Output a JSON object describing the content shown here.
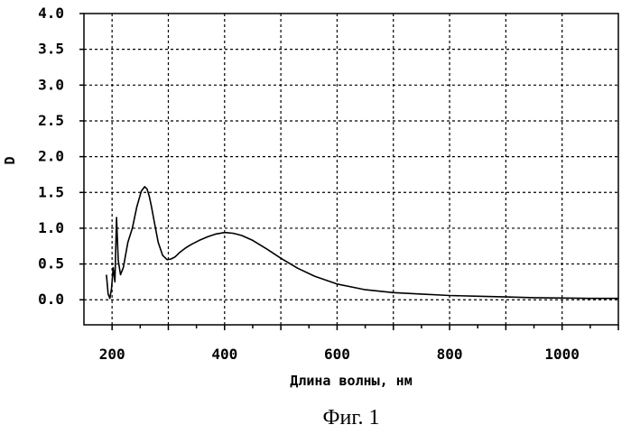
{
  "chart_data": {
    "type": "line",
    "xlabel": "Длина волны, нм",
    "ylabel": "D",
    "caption": "Фиг. 1",
    "xlim": [
      150,
      1100
    ],
    "ylim": [
      -0.35,
      4.0
    ],
    "x_ticks": [
      200,
      400,
      600,
      800,
      1000
    ],
    "y_ticks": [
      "0.0",
      "0.5",
      "1.0",
      "1.5",
      "2.0",
      "2.5",
      "3.0",
      "3.5",
      "4.0"
    ],
    "grid": true,
    "series": [
      {
        "x": [
          190,
          193,
          196,
          199,
          202,
          205,
          208,
          211,
          215,
          220,
          228,
          236,
          244,
          252,
          258,
          262,
          266,
          270,
          276,
          282,
          290,
          298,
          305,
          312,
          320,
          330,
          340,
          355,
          370,
          385,
          400,
          415,
          430,
          450,
          475,
          500,
          530,
          560,
          600,
          650,
          700,
          750,
          800,
          850,
          900,
          950,
          1000,
          1050,
          1100
        ],
        "y": [
          0.35,
          0.08,
          0.02,
          0.15,
          0.45,
          0.25,
          1.15,
          0.55,
          0.35,
          0.45,
          0.8,
          1.0,
          1.3,
          1.52,
          1.58,
          1.55,
          1.45,
          1.3,
          1.05,
          0.8,
          0.62,
          0.56,
          0.57,
          0.6,
          0.66,
          0.72,
          0.77,
          0.83,
          0.88,
          0.92,
          0.94,
          0.93,
          0.9,
          0.83,
          0.71,
          0.58,
          0.44,
          0.33,
          0.22,
          0.14,
          0.1,
          0.08,
          0.06,
          0.05,
          0.04,
          0.03,
          0.025,
          0.02,
          0.02
        ]
      }
    ]
  }
}
